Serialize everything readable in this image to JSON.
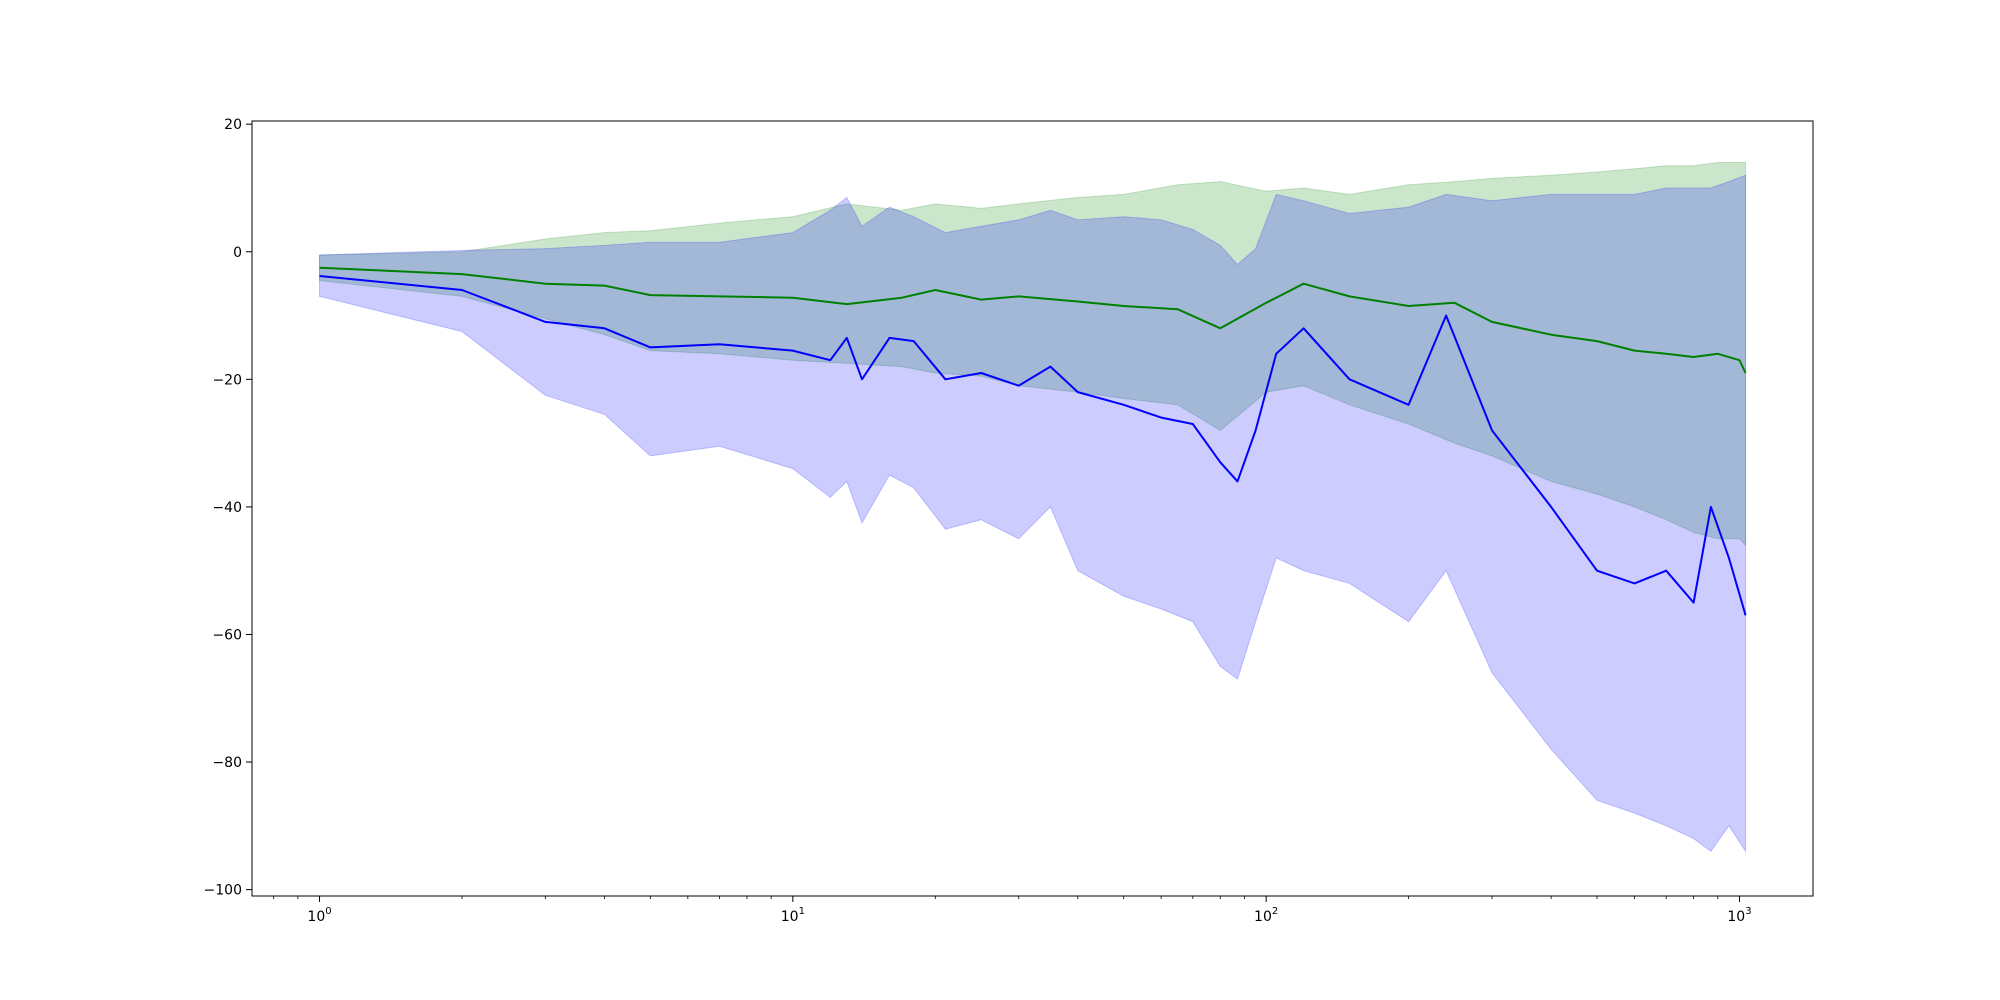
{
  "chart_data": {
    "type": "area",
    "title": "",
    "xlabel": "",
    "ylabel": "",
    "x_scale": "log",
    "xlim": [
      0.72,
      1430
    ],
    "ylim": [
      -101,
      20.5
    ],
    "grid": false,
    "legend": "none",
    "x_tick_labels": [
      {
        "value": 1,
        "base": "10",
        "exp": "0"
      },
      {
        "value": 10,
        "base": "10",
        "exp": "1"
      },
      {
        "value": 100,
        "base": "10",
        "exp": "2"
      },
      {
        "value": 1000,
        "base": "10",
        "exp": "3"
      }
    ],
    "y_ticks": [
      {
        "value": 20,
        "label": "20"
      },
      {
        "value": 0,
        "label": "0"
      },
      {
        "value": -20,
        "label": "−20"
      },
      {
        "value": -40,
        "label": "−40"
      },
      {
        "value": -60,
        "label": "−60"
      },
      {
        "value": -80,
        "label": "−80"
      },
      {
        "value": -100,
        "label": "−100"
      }
    ],
    "series": [
      {
        "color": "#008000",
        "band_color": "#008000",
        "band_opacity": 0.2,
        "points": [
          {
            "x": 1,
            "y": -2.5,
            "lo": -4.5,
            "hi": -0.5
          },
          {
            "x": 2,
            "y": -3.5,
            "lo": -7,
            "hi": 0
          },
          {
            "x": 3,
            "y": -5,
            "lo": -10.5,
            "hi": 2
          },
          {
            "x": 4,
            "y": -5.3,
            "lo": -13,
            "hi": 3
          },
          {
            "x": 5,
            "y": -6.8,
            "lo": -15.5,
            "hi": 3.3
          },
          {
            "x": 7,
            "y": -7,
            "lo": -16,
            "hi": 4.5
          },
          {
            "x": 10,
            "y": -7.2,
            "lo": -17,
            "hi": 5.5
          },
          {
            "x": 13,
            "y": -8.2,
            "lo": -17.5,
            "hi": 7.5
          },
          {
            "x": 17,
            "y": -7.2,
            "lo": -18,
            "hi": 6.5
          },
          {
            "x": 20,
            "y": -6,
            "lo": -19,
            "hi": 7.5
          },
          {
            "x": 25,
            "y": -7.5,
            "lo": -19.5,
            "hi": 6.8
          },
          {
            "x": 30,
            "y": -7,
            "lo": -21,
            "hi": 7.5
          },
          {
            "x": 40,
            "y": -7.8,
            "lo": -22,
            "hi": 8.5
          },
          {
            "x": 50,
            "y": -8.5,
            "lo": -23,
            "hi": 9
          },
          {
            "x": 65,
            "y": -9,
            "lo": -24,
            "hi": 10.5
          },
          {
            "x": 80,
            "y": -12,
            "lo": -28,
            "hi": 11
          },
          {
            "x": 100,
            "y": -8,
            "lo": -22,
            "hi": 9.5
          },
          {
            "x": 120,
            "y": -5,
            "lo": -21,
            "hi": 10
          },
          {
            "x": 150,
            "y": -7,
            "lo": -24,
            "hi": 9
          },
          {
            "x": 200,
            "y": -8.5,
            "lo": -27,
            "hi": 10.5
          },
          {
            "x": 250,
            "y": -8,
            "lo": -30,
            "hi": 11
          },
          {
            "x": 300,
            "y": -11,
            "lo": -32,
            "hi": 11.5
          },
          {
            "x": 400,
            "y": -13,
            "lo": -36,
            "hi": 12
          },
          {
            "x": 500,
            "y": -14,
            "lo": -38,
            "hi": 12.5
          },
          {
            "x": 600,
            "y": -15.5,
            "lo": -40,
            "hi": 13
          },
          {
            "x": 700,
            "y": -16,
            "lo": -42,
            "hi": 13.5
          },
          {
            "x": 800,
            "y": -16.5,
            "lo": -44,
            "hi": 13.5
          },
          {
            "x": 900,
            "y": -16,
            "lo": -45,
            "hi": 14
          },
          {
            "x": 1000,
            "y": -17,
            "lo": -45,
            "hi": 14
          },
          {
            "x": 1030,
            "y": -19,
            "lo": -46,
            "hi": 14
          }
        ]
      },
      {
        "color": "#0000ff",
        "band_color": "#0000ff",
        "band_opacity": 0.2,
        "points": [
          {
            "x": 1,
            "y": -3.8,
            "lo": -7,
            "hi": -0.5
          },
          {
            "x": 2,
            "y": -6,
            "lo": -12.5,
            "hi": 0.2
          },
          {
            "x": 3,
            "y": -11,
            "lo": -22.5,
            "hi": 0.5
          },
          {
            "x": 4,
            "y": -12,
            "lo": -25.5,
            "hi": 1
          },
          {
            "x": 5,
            "y": -15,
            "lo": -32,
            "hi": 1.5
          },
          {
            "x": 7,
            "y": -14.5,
            "lo": -30.5,
            "hi": 1.5
          },
          {
            "x": 10,
            "y": -15.5,
            "lo": -34,
            "hi": 3
          },
          {
            "x": 12,
            "y": -17,
            "lo": -38.5,
            "hi": 6.5
          },
          {
            "x": 13,
            "y": -13.5,
            "lo": -36,
            "hi": 8.5
          },
          {
            "x": 14,
            "y": -20,
            "lo": -42.5,
            "hi": 4
          },
          {
            "x": 16,
            "y": -13.5,
            "lo": -35,
            "hi": 7
          },
          {
            "x": 18,
            "y": -14,
            "lo": -37,
            "hi": 5.5
          },
          {
            "x": 21,
            "y": -20,
            "lo": -43.5,
            "hi": 3
          },
          {
            "x": 25,
            "y": -19,
            "lo": -42,
            "hi": 4
          },
          {
            "x": 30,
            "y": -21,
            "lo": -45,
            "hi": 5
          },
          {
            "x": 35,
            "y": -18,
            "lo": -40,
            "hi": 6.5
          },
          {
            "x": 40,
            "y": -22,
            "lo": -50,
            "hi": 5
          },
          {
            "x": 50,
            "y": -24,
            "lo": -54,
            "hi": 5.5
          },
          {
            "x": 60,
            "y": -26,
            "lo": -56,
            "hi": 5
          },
          {
            "x": 70,
            "y": -27,
            "lo": -58,
            "hi": 3.5
          },
          {
            "x": 80,
            "y": -33,
            "lo": -65,
            "hi": 1
          },
          {
            "x": 87,
            "y": -36,
            "lo": -67,
            "hi": -2
          },
          {
            "x": 95,
            "y": -28,
            "lo": -58,
            "hi": 0.5
          },
          {
            "x": 105,
            "y": -16,
            "lo": -48,
            "hi": 9
          },
          {
            "x": 120,
            "y": -12,
            "lo": -50,
            "hi": 8
          },
          {
            "x": 150,
            "y": -20,
            "lo": -52,
            "hi": 6
          },
          {
            "x": 200,
            "y": -24,
            "lo": -58,
            "hi": 7
          },
          {
            "x": 240,
            "y": -10,
            "lo": -50,
            "hi": 9
          },
          {
            "x": 300,
            "y": -28,
            "lo": -66,
            "hi": 8
          },
          {
            "x": 400,
            "y": -40,
            "lo": -78,
            "hi": 9
          },
          {
            "x": 500,
            "y": -50,
            "lo": -86,
            "hi": 9
          },
          {
            "x": 600,
            "y": -52,
            "lo": -88,
            "hi": 9
          },
          {
            "x": 700,
            "y": -50,
            "lo": -90,
            "hi": 10
          },
          {
            "x": 800,
            "y": -55,
            "lo": -92,
            "hi": 10
          },
          {
            "x": 870,
            "y": -40,
            "lo": -94,
            "hi": 10
          },
          {
            "x": 950,
            "y": -48,
            "lo": -90,
            "hi": 11
          },
          {
            "x": 1030,
            "y": -57,
            "lo": -94,
            "hi": 12
          }
        ]
      }
    ]
  }
}
